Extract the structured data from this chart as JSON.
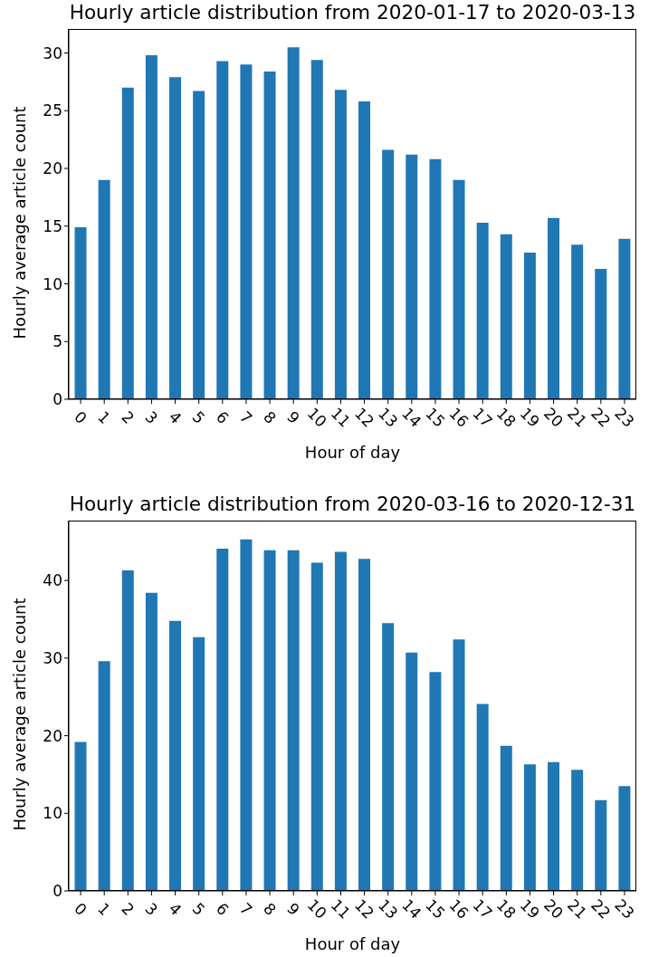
{
  "chart_data": [
    {
      "type": "bar",
      "title": "Hourly article distribution from 2020-01-17 to 2020-03-13",
      "xlabel": "Hour of day",
      "ylabel": "Hourly average article count",
      "categories": [
        "0",
        "1",
        "2",
        "3",
        "4",
        "5",
        "6",
        "7",
        "8",
        "9",
        "10",
        "11",
        "12",
        "13",
        "14",
        "15",
        "16",
        "17",
        "18",
        "19",
        "20",
        "21",
        "22",
        "23"
      ],
      "values": [
        14.9,
        19.0,
        27.0,
        29.8,
        27.9,
        26.7,
        29.3,
        29.0,
        28.4,
        30.5,
        29.4,
        26.8,
        25.8,
        21.6,
        21.2,
        20.8,
        19.0,
        15.3,
        14.3,
        12.7,
        15.7,
        13.4,
        11.3,
        13.9
      ],
      "color": "#1f77b4",
      "ylim": [
        0,
        32
      ],
      "yticks": [
        0,
        5,
        10,
        15,
        20,
        25,
        30
      ]
    },
    {
      "type": "bar",
      "title": "Hourly article distribution from 2020-03-16 to 2020-12-31",
      "xlabel": "Hour of day",
      "ylabel": "Hourly average article count",
      "categories": [
        "0",
        "1",
        "2",
        "3",
        "4",
        "5",
        "6",
        "7",
        "8",
        "9",
        "10",
        "11",
        "12",
        "13",
        "14",
        "15",
        "16",
        "17",
        "18",
        "19",
        "20",
        "21",
        "22",
        "23"
      ],
      "values": [
        19.2,
        29.6,
        41.3,
        38.4,
        34.8,
        32.7,
        44.1,
        45.3,
        43.9,
        43.9,
        42.3,
        43.7,
        42.8,
        34.5,
        30.7,
        28.2,
        32.4,
        24.1,
        18.7,
        16.3,
        16.6,
        15.6,
        11.7,
        13.5
      ],
      "color": "#1f77b4",
      "ylim": [
        0,
        47.6
      ],
      "yticks": [
        0,
        10,
        20,
        30,
        40
      ]
    }
  ]
}
